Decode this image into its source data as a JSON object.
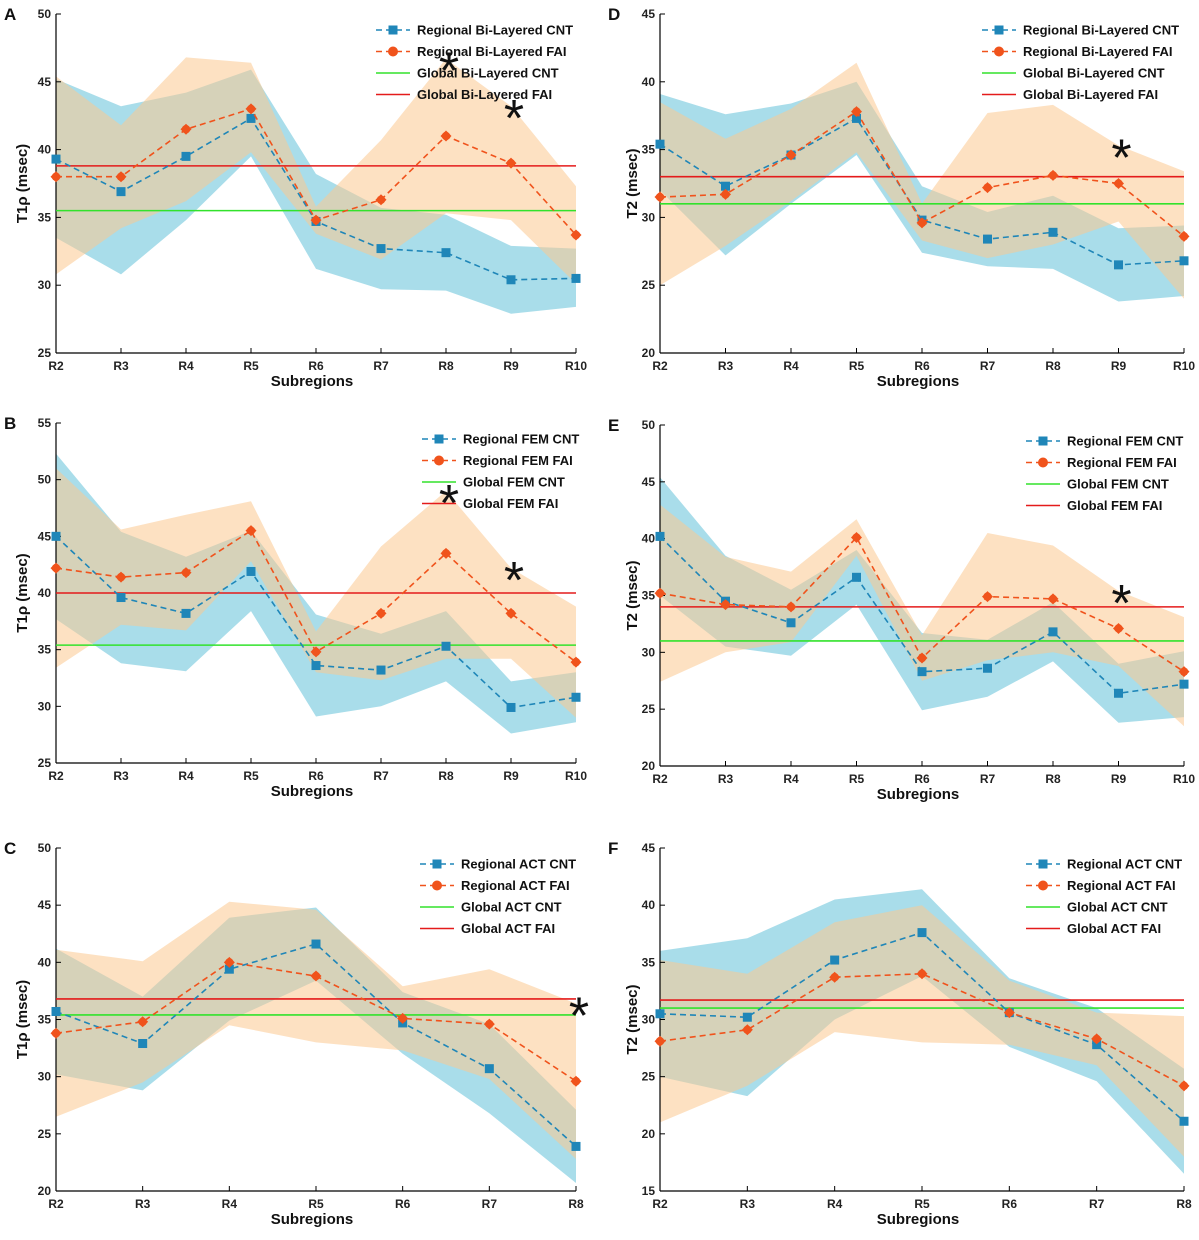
{
  "figure": {
    "colors": {
      "cnt": "#1f86b8",
      "fai": "#f0531c",
      "cnt_band": "#84cfe1",
      "fai_band": "#fbc88f",
      "global_cnt": "#32e22c",
      "global_fai": "#e41b1b"
    }
  },
  "chart_data": [
    {
      "id": "A",
      "panel_label": "A",
      "type": "line",
      "categories": [
        "R2",
        "R3",
        "R4",
        "R5",
        "R6",
        "R7",
        "R8",
        "R9",
        "R10"
      ],
      "xlabel": "Subregions",
      "ylabel": "T1ρ (msec)",
      "ylim": [
        25,
        50
      ],
      "yticks": [
        25,
        30,
        35,
        40,
        45,
        50
      ],
      "legend_position": "top-right",
      "series": [
        {
          "name": "Regional Bi-Layered CNT",
          "kind": "regional",
          "color": "#1f86b8",
          "band_color": "#84cfe1",
          "values": [
            39.3,
            36.9,
            39.5,
            42.3,
            34.7,
            32.7,
            32.4,
            30.4,
            30.5
          ],
          "lower": [
            33.5,
            30.8,
            34.8,
            39.5,
            31.2,
            29.7,
            29.6,
            27.9,
            28.4
          ],
          "upper": [
            45.2,
            43.2,
            44.2,
            45.9,
            38.2,
            35.7,
            35.2,
            32.9,
            32.7
          ]
        },
        {
          "name": "Regional Bi-Layered FAI",
          "kind": "regional",
          "color": "#f0531c",
          "band_color": "#fbc88f",
          "values": [
            38.0,
            38.0,
            41.5,
            43.0,
            34.8,
            36.3,
            41.0,
            39.0,
            33.7
          ],
          "lower": [
            30.8,
            34.2,
            36.2,
            39.8,
            33.8,
            31.9,
            35.3,
            34.8,
            30.1
          ],
          "upper": [
            45.4,
            41.8,
            46.8,
            46.4,
            35.8,
            40.7,
            46.7,
            43.2,
            37.3
          ]
        },
        {
          "name": "Global Bi-Layered CNT",
          "kind": "global",
          "color": "#32e22c",
          "value": 35.5
        },
        {
          "name": "Global Bi-Layered FAI",
          "kind": "global",
          "color": "#e41b1b",
          "value": 38.8
        }
      ],
      "significant": [
        {
          "category": "R8",
          "label": "*"
        },
        {
          "category": "R9",
          "label": "*"
        }
      ]
    },
    {
      "id": "D",
      "panel_label": "D",
      "type": "line",
      "categories": [
        "R2",
        "R3",
        "R4",
        "R5",
        "R6",
        "R7",
        "R8",
        "R9",
        "R10"
      ],
      "xlabel": "Subregions",
      "ylabel": "T2 (msec)",
      "ylim": [
        20,
        45
      ],
      "yticks": [
        20,
        25,
        30,
        35,
        40,
        45
      ],
      "legend_position": "top-right",
      "series": [
        {
          "name": "Regional Bi-Layered CNT",
          "kind": "regional",
          "color": "#1f86b8",
          "band_color": "#84cfe1",
          "values": [
            35.4,
            32.3,
            34.6,
            37.3,
            29.8,
            28.4,
            28.9,
            26.5,
            26.8
          ],
          "lower": [
            32.0,
            27.2,
            31.0,
            34.6,
            27.4,
            26.4,
            26.2,
            23.8,
            24.2
          ],
          "upper": [
            39.1,
            37.6,
            38.4,
            40.0,
            32.3,
            30.4,
            31.6,
            29.2,
            29.4
          ]
        },
        {
          "name": "Regional Bi-Layered FAI",
          "kind": "regional",
          "color": "#f0531c",
          "band_color": "#fbc88f",
          "values": [
            31.5,
            31.7,
            34.6,
            37.8,
            29.6,
            32.2,
            33.1,
            32.5,
            28.6
          ],
          "lower": [
            25.0,
            27.9,
            31.2,
            34.8,
            28.3,
            27.0,
            28.0,
            29.7,
            24.0
          ],
          "upper": [
            38.5,
            35.8,
            38.0,
            41.4,
            31.0,
            37.7,
            38.3,
            35.3,
            33.4
          ]
        },
        {
          "name": "Global Bi-Layered CNT",
          "kind": "global",
          "color": "#32e22c",
          "value": 31.0
        },
        {
          "name": "Global Bi-Layered FAI",
          "kind": "global",
          "color": "#e41b1b",
          "value": 33.0
        }
      ],
      "significant": [
        {
          "category": "R9",
          "label": "*"
        }
      ]
    },
    {
      "id": "B",
      "panel_label": "B",
      "type": "line",
      "categories": [
        "R2",
        "R3",
        "R4",
        "R5",
        "R6",
        "R7",
        "R8",
        "R9",
        "R10"
      ],
      "xlabel": "Subregions",
      "ylabel": "T1ρ (msec)",
      "ylim": [
        25,
        55
      ],
      "yticks": [
        25,
        30,
        35,
        40,
        45,
        50,
        55
      ],
      "legend_position": "top-right",
      "series": [
        {
          "name": "Regional FEM CNT",
          "kind": "regional",
          "color": "#1f86b8",
          "band_color": "#84cfe1",
          "values": [
            45.0,
            39.6,
            38.2,
            41.9,
            33.6,
            33.2,
            35.3,
            29.9,
            30.8
          ],
          "lower": [
            37.7,
            33.8,
            33.1,
            38.4,
            29.1,
            30.0,
            32.2,
            27.6,
            28.6
          ],
          "upper": [
            52.3,
            45.4,
            43.2,
            45.5,
            38.1,
            36.4,
            38.4,
            32.2,
            33.0
          ]
        },
        {
          "name": "Regional FEM FAI",
          "kind": "regional",
          "color": "#f0531c",
          "band_color": "#fbc88f",
          "values": [
            42.2,
            41.4,
            41.8,
            45.5,
            34.8,
            38.2,
            43.5,
            38.2,
            33.9
          ],
          "lower": [
            33.4,
            37.2,
            36.7,
            42.8,
            33.0,
            32.3,
            34.2,
            34.2,
            29.0
          ],
          "upper": [
            51.0,
            45.6,
            46.9,
            48.1,
            36.6,
            44.1,
            49.0,
            42.2,
            38.8
          ]
        },
        {
          "name": "Global FEM CNT",
          "kind": "global",
          "color": "#32e22c",
          "value": 35.4
        },
        {
          "name": "Global FEM FAI",
          "kind": "global",
          "color": "#e41b1b",
          "value": 40.0
        }
      ],
      "significant": [
        {
          "category": "R8",
          "label": "*"
        },
        {
          "category": "R9",
          "label": "*"
        }
      ]
    },
    {
      "id": "E",
      "panel_label": "E",
      "type": "line",
      "categories": [
        "R2",
        "R3",
        "R4",
        "R5",
        "R6",
        "R7",
        "R8",
        "R9",
        "R10"
      ],
      "xlabel": "Subregions",
      "ylabel": "T2 (msec)",
      "ylim": [
        20,
        50
      ],
      "yticks": [
        20,
        25,
        30,
        35,
        40,
        45,
        50
      ],
      "legend_position": "top-right",
      "series": [
        {
          "name": "Regional FEM CNT",
          "kind": "regional",
          "color": "#1f86b8",
          "band_color": "#84cfe1",
          "values": [
            40.2,
            34.5,
            32.6,
            36.6,
            28.3,
            28.6,
            31.8,
            26.4,
            27.2
          ],
          "lower": [
            35.0,
            30.5,
            29.7,
            34.2,
            24.9,
            26.1,
            29.2,
            23.8,
            24.3
          ],
          "upper": [
            45.4,
            38.5,
            35.5,
            39.0,
            31.7,
            31.1,
            34.4,
            29.0,
            30.1
          ]
        },
        {
          "name": "Regional FEM FAI",
          "kind": "regional",
          "color": "#f0531c",
          "band_color": "#fbc88f",
          "values": [
            35.2,
            34.2,
            34.0,
            40.1,
            29.5,
            34.9,
            34.7,
            32.1,
            28.3
          ],
          "lower": [
            27.4,
            30.0,
            30.9,
            38.5,
            27.5,
            29.3,
            30.0,
            28.8,
            23.5
          ],
          "upper": [
            43.0,
            38.4,
            37.1,
            41.7,
            31.5,
            40.5,
            39.4,
            35.4,
            33.1
          ]
        },
        {
          "name": "Global FEM CNT",
          "kind": "global",
          "color": "#32e22c",
          "value": 31.0
        },
        {
          "name": "Global FEM FAI",
          "kind": "global",
          "color": "#e41b1b",
          "value": 34.0
        }
      ],
      "significant": [
        {
          "category": "R9",
          "label": "*"
        }
      ]
    },
    {
      "id": "C",
      "panel_label": "C",
      "type": "line",
      "categories": [
        "R2",
        "R3",
        "R4",
        "R5",
        "R6",
        "R7",
        "R8"
      ],
      "xlabel": "Subregions",
      "ylabel": "T1ρ (msec)",
      "ylim": [
        20,
        50
      ],
      "yticks": [
        20,
        25,
        30,
        35,
        40,
        45,
        50
      ],
      "legend_position": "top-right",
      "series": [
        {
          "name": "Regional ACT CNT",
          "kind": "regional",
          "color": "#1f86b8",
          "band_color": "#84cfe1",
          "values": [
            35.7,
            32.9,
            39.4,
            41.6,
            34.7,
            30.7,
            23.9
          ],
          "lower": [
            30.2,
            28.8,
            34.9,
            38.4,
            32.0,
            26.8,
            20.7
          ],
          "upper": [
            41.2,
            37.0,
            43.9,
            44.8,
            37.4,
            34.6,
            27.1
          ]
        },
        {
          "name": "Regional ACT FAI",
          "kind": "regional",
          "color": "#f0531c",
          "band_color": "#fbc88f",
          "values": [
            33.8,
            34.8,
            40.0,
            38.8,
            35.1,
            34.6,
            29.6
          ],
          "lower": [
            26.5,
            29.5,
            34.5,
            33.0,
            32.3,
            29.8,
            22.8
          ],
          "upper": [
            41.1,
            40.1,
            45.3,
            44.6,
            37.9,
            39.4,
            36.4
          ]
        },
        {
          "name": "Global ACT CNT",
          "kind": "global",
          "color": "#32e22c",
          "value": 35.4
        },
        {
          "name": "Global ACT FAI",
          "kind": "global",
          "color": "#e41b1b",
          "value": 36.8
        }
      ],
      "significant": [
        {
          "category": "R8",
          "label": "*"
        }
      ]
    },
    {
      "id": "F",
      "panel_label": "F",
      "type": "line",
      "categories": [
        "R2",
        "R3",
        "R4",
        "R5",
        "R6",
        "R7",
        "R8"
      ],
      "xlabel": "Subregions",
      "ylabel": "T2 (msec)",
      "ylim": [
        15,
        45
      ],
      "yticks": [
        15,
        20,
        25,
        30,
        35,
        40,
        45
      ],
      "legend_position": "top-right",
      "series": [
        {
          "name": "Regional ACT CNT",
          "kind": "regional",
          "color": "#1f86b8",
          "band_color": "#84cfe1",
          "values": [
            30.5,
            30.2,
            35.2,
            37.6,
            30.6,
            27.8,
            21.1
          ],
          "lower": [
            25.0,
            23.3,
            30.0,
            33.8,
            27.6,
            24.6,
            16.5
          ],
          "upper": [
            36.0,
            37.1,
            40.5,
            41.4,
            33.6,
            31.0,
            25.7
          ]
        },
        {
          "name": "Regional ACT FAI",
          "kind": "regional",
          "color": "#f0531c",
          "band_color": "#fbc88f",
          "values": [
            28.1,
            29.1,
            33.7,
            34.0,
            30.6,
            28.3,
            24.2
          ],
          "lower": [
            21.0,
            24.2,
            28.9,
            28.0,
            27.8,
            26.0,
            18.0
          ],
          "upper": [
            35.2,
            34.0,
            38.5,
            40.0,
            33.4,
            30.6,
            30.3
          ]
        },
        {
          "name": "Global ACT CNT",
          "kind": "global",
          "color": "#32e22c",
          "value": 31.0
        },
        {
          "name": "Global ACT FAI",
          "kind": "global",
          "color": "#e41b1b",
          "value": 31.7
        }
      ],
      "significant": []
    }
  ]
}
